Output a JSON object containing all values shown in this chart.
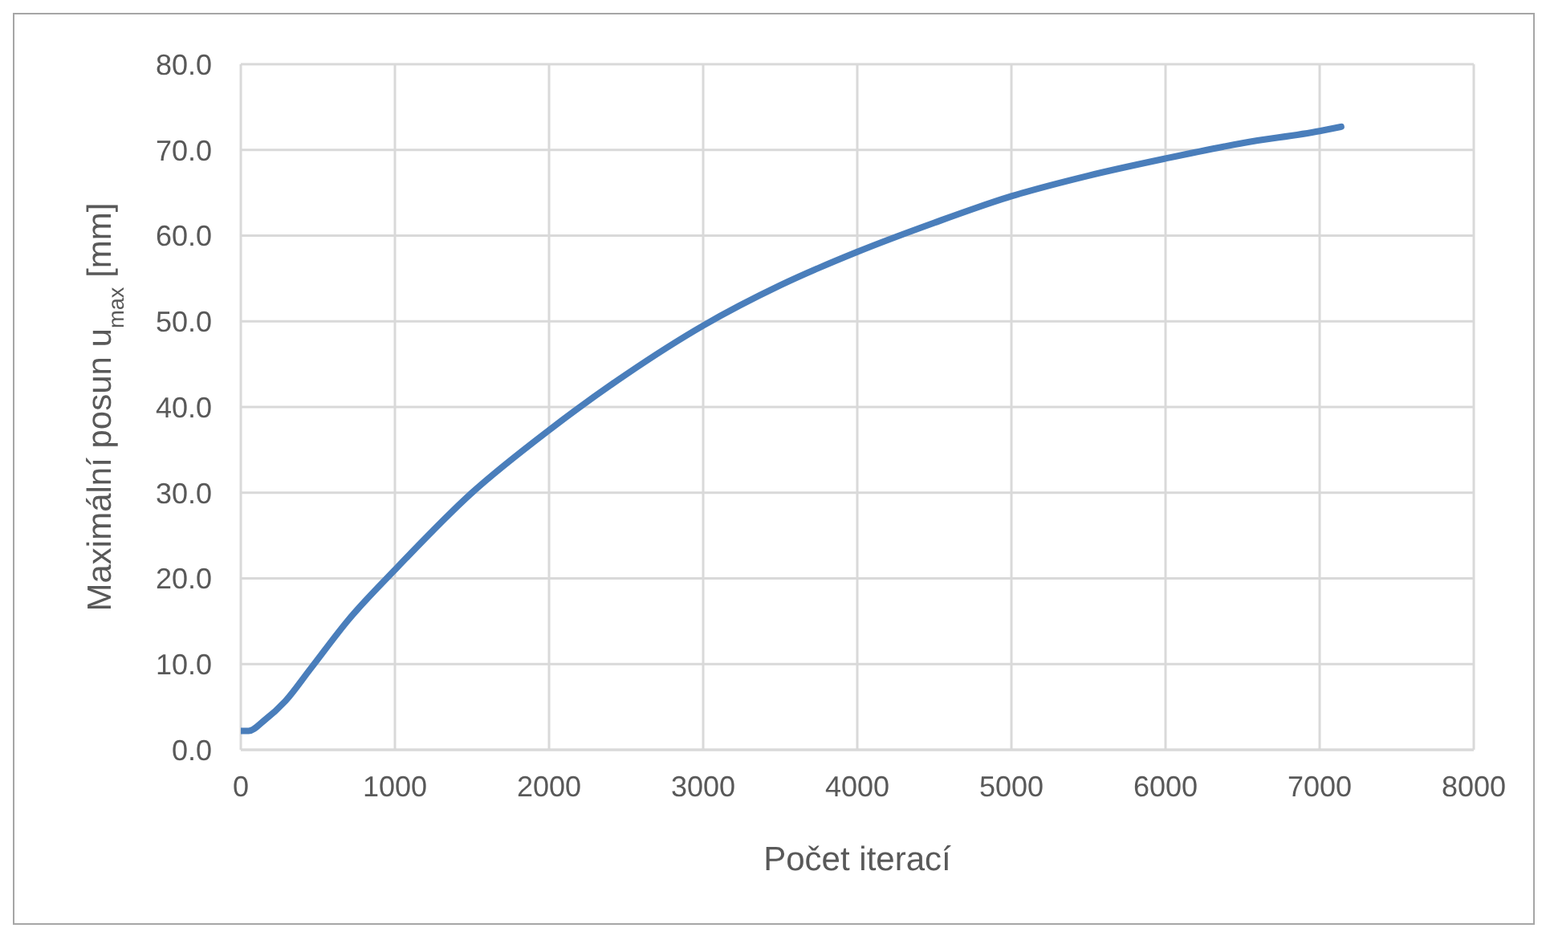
{
  "chart_data": {
    "type": "line",
    "xlabel": "Počet iterací",
    "ylabel": "Maximální posun u$_{max}$ [mm]",
    "x": [
      0,
      50,
      150,
      290,
      450,
      700,
      1000,
      1500,
      2000,
      2500,
      3000,
      3500,
      4000,
      4500,
      5000,
      5500,
      6000,
      6500,
      7000,
      7140
    ],
    "series": [
      {
        "color": "#4a7ebb",
        "values": [
          2.2,
          2.2,
          3.4,
          5.7,
          9.4,
          15.2,
          21.0,
          30.0,
          37.3,
          43.8,
          49.5,
          54.2,
          58.1,
          61.5,
          64.6,
          67.0,
          69.0,
          70.8,
          72.2,
          72.7
        ]
      }
    ],
    "xlim": [
      0,
      8000
    ],
    "xticks": [
      0,
      1000,
      2000,
      3000,
      4000,
      5000,
      6000,
      7000,
      8000
    ],
    "ylim": [
      0,
      80
    ],
    "yticks": [
      {
        "value": 0,
        "label": "0.0"
      },
      {
        "value": 10,
        "label": "10.0"
      },
      {
        "value": 20,
        "label": "20.0"
      },
      {
        "value": 30,
        "label": "30.0"
      },
      {
        "value": 40,
        "label": "40.0"
      },
      {
        "value": 50,
        "label": "50.0"
      },
      {
        "value": 60,
        "label": "60.0"
      },
      {
        "value": 70,
        "label": "70.0"
      },
      {
        "value": 80,
        "label": "80.0"
      }
    ],
    "grid": true,
    "line_style": "solid"
  }
}
